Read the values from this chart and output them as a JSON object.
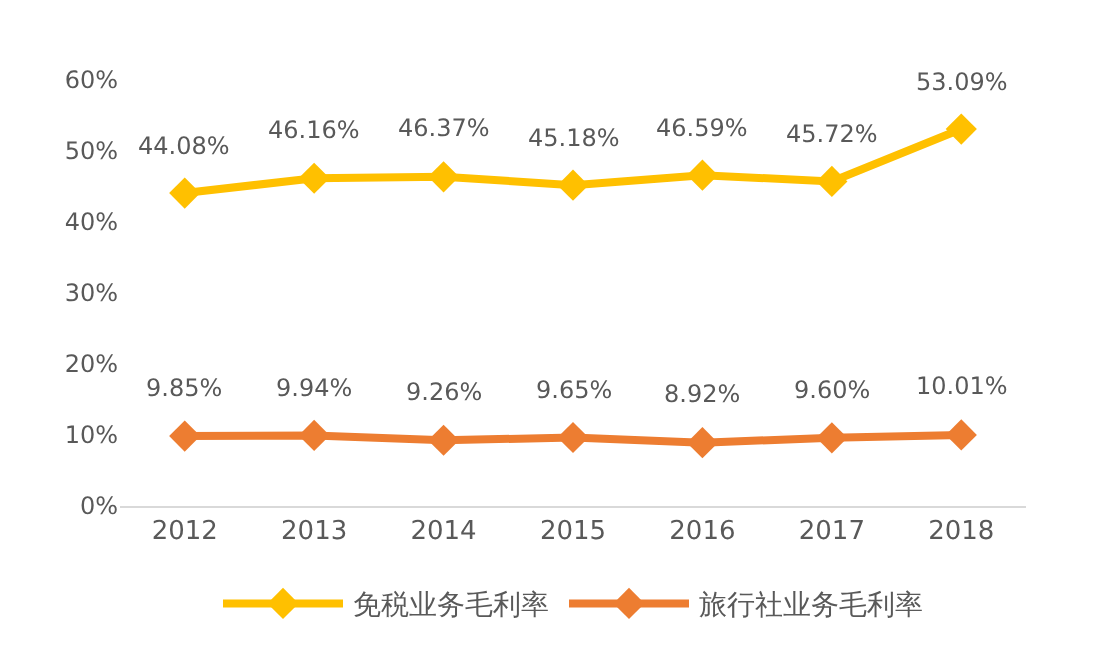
{
  "chart_data": {
    "type": "line",
    "categories": [
      "2012",
      "2013",
      "2014",
      "2015",
      "2016",
      "2017",
      "2018"
    ],
    "series": [
      {
        "name": "免税业务毛利率",
        "color": "#ffc000",
        "values": [
          44.08,
          46.16,
          46.37,
          45.18,
          46.59,
          45.72,
          53.09
        ],
        "value_labels": [
          "44.08%",
          "46.16%",
          "46.37%",
          "45.18%",
          "46.59%",
          "45.72%",
          "53.09%"
        ]
      },
      {
        "name": "旅行社业务毛利率",
        "color": "#ed7d31",
        "values": [
          9.85,
          9.94,
          9.26,
          9.65,
          8.92,
          9.6,
          10.01
        ],
        "value_labels": [
          "9.85%",
          "9.94%",
          "9.26%",
          "9.65%",
          "8.92%",
          "9.60%",
          "10.01%"
        ]
      }
    ],
    "ylim": [
      0,
      60
    ],
    "yticks": [
      {
        "value": 0,
        "label": "0%"
      },
      {
        "value": 10,
        "label": "10%"
      },
      {
        "value": 20,
        "label": "20%"
      },
      {
        "value": 30,
        "label": "30%"
      },
      {
        "value": 40,
        "label": "40%"
      },
      {
        "value": 50,
        "label": "50%"
      },
      {
        "value": 60,
        "label": "60%"
      }
    ],
    "legend": "bottom",
    "marker": "diamond",
    "line_style": "solid"
  }
}
